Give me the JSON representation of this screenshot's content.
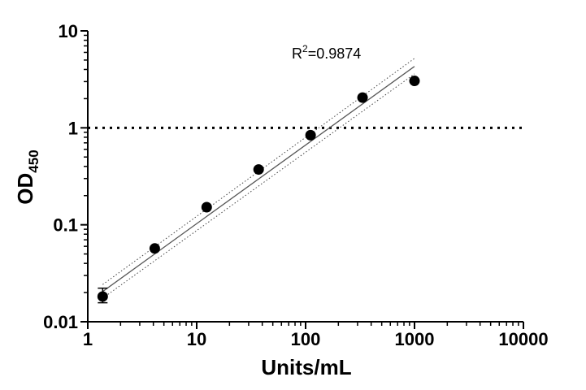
{
  "chart_data": {
    "type": "scatter",
    "title": "",
    "xlabel": "Units/mL",
    "ylabel": "OD",
    "ylabel_subscript": "450",
    "x_scale": "log",
    "y_scale": "log",
    "xlim": [
      1,
      10000
    ],
    "ylim": [
      0.01,
      10
    ],
    "x_ticks": [
      1,
      10,
      100,
      1000,
      10000
    ],
    "x_tick_labels": [
      "1",
      "10",
      "100",
      "1000",
      "10000"
    ],
    "y_ticks": [
      0.01,
      0.1,
      1,
      10
    ],
    "y_tick_labels": [
      "0.01",
      "0.1",
      "1",
      "10"
    ],
    "grid": false,
    "legend": "none",
    "series": [
      {
        "x": [
          1.37,
          4.12,
          12.35,
          37.04,
          111.1,
          333.3,
          1000
        ],
        "y": [
          0.0182,
          0.057,
          0.152,
          0.372,
          0.84,
          2.05,
          3.05
        ],
        "error_low": [
          0.0157,
          null,
          null,
          null,
          null,
          null,
          null
        ],
        "error_high": [
          0.0222,
          null,
          null,
          null,
          null,
          null,
          null
        ],
        "color": "#000000"
      }
    ],
    "fit_line": {
      "x": [
        1.37,
        1000
      ],
      "y": [
        0.0205,
        4.3
      ],
      "color": "#555555"
    },
    "confidence_band": {
      "upper": {
        "x": [
          1.37,
          1000
        ],
        "y": [
          0.0242,
          5.2
        ]
      },
      "lower": {
        "x": [
          1.37,
          1000
        ],
        "y": [
          0.0175,
          3.6
        ]
      }
    },
    "reference_line": {
      "y": 1,
      "xlim": [
        1,
        1000
      ],
      "style": "dotted"
    },
    "annotation": {
      "text_main": "R",
      "text_sup": "2",
      "text_rest": "=0.9874"
    }
  }
}
